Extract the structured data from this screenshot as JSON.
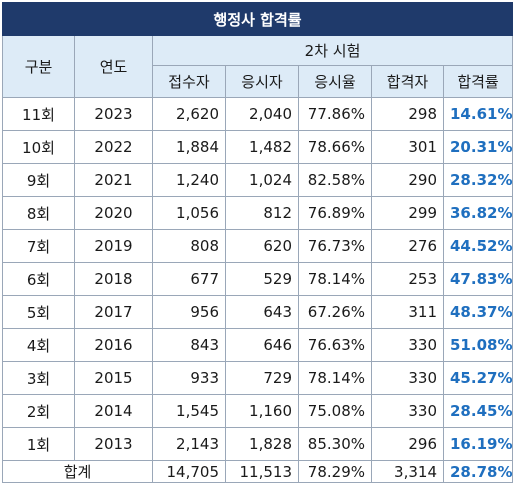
{
  "table": {
    "title": "행정사 합격률",
    "headers": {
      "category": "구분",
      "year": "연도",
      "group": "2차 시험",
      "applicants": "접수자",
      "takers": "응시자",
      "take_rate": "응시율",
      "passers": "합격자",
      "pass_rate": "합격률"
    },
    "rows": [
      {
        "round": "11회",
        "year": "2023",
        "applicants": "2,620",
        "takers": "2,040",
        "take_rate": "77.86%",
        "passers": "298",
        "pass_rate": "14.61%"
      },
      {
        "round": "10회",
        "year": "2022",
        "applicants": "1,884",
        "takers": "1,482",
        "take_rate": "78.66%",
        "passers": "301",
        "pass_rate": "20.31%"
      },
      {
        "round": "9회",
        "year": "2021",
        "applicants": "1,240",
        "takers": "1,024",
        "take_rate": "82.58%",
        "passers": "290",
        "pass_rate": "28.32%"
      },
      {
        "round": "8회",
        "year": "2020",
        "applicants": "1,056",
        "takers": "812",
        "take_rate": "76.89%",
        "passers": "299",
        "pass_rate": "36.82%"
      },
      {
        "round": "7회",
        "year": "2019",
        "applicants": "808",
        "takers": "620",
        "take_rate": "76.73%",
        "passers": "276",
        "pass_rate": "44.52%"
      },
      {
        "round": "6회",
        "year": "2018",
        "applicants": "677",
        "takers": "529",
        "take_rate": "78.14%",
        "passers": "253",
        "pass_rate": "47.83%"
      },
      {
        "round": "5회",
        "year": "2017",
        "applicants": "956",
        "takers": "643",
        "take_rate": "67.26%",
        "passers": "311",
        "pass_rate": "48.37%"
      },
      {
        "round": "4회",
        "year": "2016",
        "applicants": "843",
        "takers": "646",
        "take_rate": "76.63%",
        "passers": "330",
        "pass_rate": "51.08%"
      },
      {
        "round": "3회",
        "year": "2015",
        "applicants": "933",
        "takers": "729",
        "take_rate": "78.14%",
        "passers": "330",
        "pass_rate": "45.27%"
      },
      {
        "round": "2회",
        "year": "2014",
        "applicants": "1,545",
        "takers": "1,160",
        "take_rate": "75.08%",
        "passers": "330",
        "pass_rate": "28.45%"
      },
      {
        "round": "1회",
        "year": "2013",
        "applicants": "2,143",
        "takers": "1,828",
        "take_rate": "85.30%",
        "passers": "296",
        "pass_rate": "16.19%"
      }
    ],
    "total": {
      "label": "합계",
      "applicants": "14,705",
      "takers": "11,513",
      "take_rate": "78.29%",
      "passers": "3,314",
      "pass_rate": "28.78%"
    }
  },
  "colors": {
    "title_bg": "#1f3a6b",
    "header_bg": "#ddebf7",
    "rate_text": "#1f6fbf",
    "border": "#9aa7b8"
  }
}
